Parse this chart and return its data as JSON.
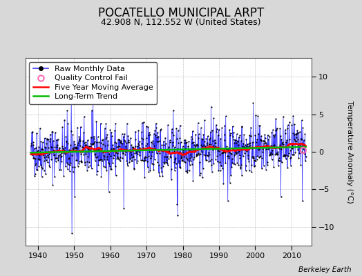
{
  "title": "POCATELLO MUNICIPAL ARPT",
  "subtitle": "42.908 N, 112.552 W (United States)",
  "ylabel": "Temperature Anomaly (°C)",
  "attribution": "Berkeley Earth",
  "xlim": [
    1936.5,
    2015.5
  ],
  "ylim": [
    -12.5,
    12.5
  ],
  "yticks": [
    -10,
    -5,
    0,
    5,
    10
  ],
  "xticks": [
    1940,
    1950,
    1960,
    1970,
    1980,
    1990,
    2000,
    2010
  ],
  "start_year": 1938,
  "end_year": 2014,
  "seed": 42,
  "raw_color": "#3333ff",
  "ma_color": "#ff0000",
  "trend_color": "#00bb00",
  "qc_color": "#ff69b4",
  "bg_color": "#d8d8d8",
  "plot_bg_color": "#ffffff",
  "grid_color": "#aaaaaa",
  "title_fontsize": 12,
  "subtitle_fontsize": 9,
  "ylabel_fontsize": 8,
  "tick_fontsize": 8,
  "legend_fontsize": 8
}
